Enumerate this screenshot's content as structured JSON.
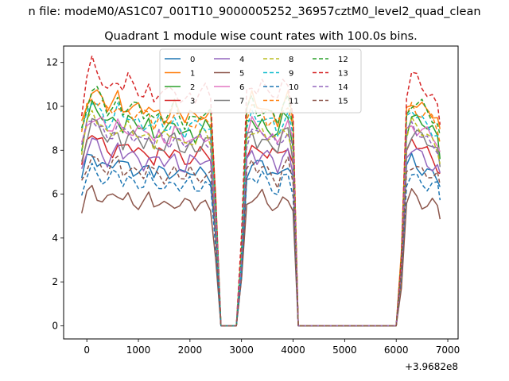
{
  "chart_data": {
    "type": "line",
    "suptitle": "n file: modeM0/AS1C07_001T10_9000005252_36957cztM0_level2_quad_clean",
    "title": "Quadrant 1 module wise count rates with 100.0s bins.",
    "xlabel": "",
    "ylabel": "",
    "x_offset_label": "+3.9682e8",
    "xlim": [
      -450,
      7200
    ],
    "ylim": [
      -0.6,
      12.75
    ],
    "x_ticks": [
      0,
      1000,
      2000,
      3000,
      4000,
      5000,
      6000,
      7000
    ],
    "x_tick_labels": [
      "0",
      "1000",
      "2000",
      "3000",
      "4000",
      "5000",
      "6000",
      "7000"
    ],
    "y_ticks": [
      0,
      2,
      4,
      6,
      8,
      10,
      12
    ],
    "y_tick_labels": [
      "0",
      "2",
      "4",
      "6",
      "8",
      "10",
      "12"
    ],
    "grid": false,
    "legend_location": "upper center",
    "legend_columns": 4,
    "note": "Per-module curves digitized approximately: baseline level per module plus shared fluctuation pattern; zero-rate gaps at ~2600-2950 and ~4150-6050.",
    "series": [
      {
        "name": "0",
        "color": "#1f77b4",
        "dash": "solid",
        "level": 7.3
      },
      {
        "name": "1",
        "color": "#ff7f0e",
        "dash": "solid",
        "level": 10.1
      },
      {
        "name": "2",
        "color": "#2ca02c",
        "dash": "solid",
        "level": 9.3
      },
      {
        "name": "3",
        "color": "#d62728",
        "dash": "solid",
        "level": 8.1
      },
      {
        "name": "4",
        "color": "#9467bd",
        "dash": "solid",
        "level": 7.8
      },
      {
        "name": "5",
        "color": "#8c564b",
        "dash": "solid",
        "level": 5.8
      },
      {
        "name": "6",
        "color": "#e377c2",
        "dash": "solid",
        "level": 9.0
      },
      {
        "name": "7",
        "color": "#7f7f7f",
        "dash": "solid",
        "level": 8.6
      },
      {
        "name": "8",
        "color": "#bcbd22",
        "dash": "dashed",
        "level": 8.9
      },
      {
        "name": "9",
        "color": "#17becf",
        "dash": "dashed",
        "level": 9.5
      },
      {
        "name": "10",
        "color": "#1f77b4",
        "dash": "dashed",
        "level": 6.7
      },
      {
        "name": "11",
        "color": "#ff7f0e",
        "dash": "dashed",
        "level": 9.8
      },
      {
        "name": "12",
        "color": "#2ca02c",
        "dash": "dashed",
        "level": 10.0
      },
      {
        "name": "13",
        "color": "#d62728",
        "dash": "dashed",
        "level": 11.0
      },
      {
        "name": "14",
        "color": "#9467bd",
        "dash": "dashed",
        "level": 8.8
      },
      {
        "name": "15",
        "color": "#8c564b",
        "dash": "dashed",
        "level": 7.2
      }
    ],
    "shape": {
      "x": [
        -100,
        0,
        100,
        200,
        300,
        400,
        500,
        600,
        700,
        800,
        900,
        1000,
        1100,
        1200,
        1300,
        1400,
        1500,
        1600,
        1700,
        1800,
        1900,
        2000,
        2100,
        2200,
        2300,
        2400,
        2500,
        2600,
        2700,
        2800,
        2900,
        3000,
        3100,
        3200,
        3300,
        3400,
        3500,
        3600,
        3700,
        3800,
        3900,
        4000,
        4100,
        4200,
        4300,
        4400,
        4500,
        4600,
        4700,
        4800,
        4900,
        5000,
        5100,
        5200,
        5300,
        5400,
        5500,
        5600,
        5700,
        5800,
        5900,
        6000,
        6100,
        6200,
        6300,
        6400,
        6500,
        6600,
        6700,
        6800,
        6850
      ],
      "factor": [
        0.9,
        1.02,
        1.08,
        1.05,
        1.02,
        0.98,
        1.0,
        1.03,
        0.98,
        1.01,
        0.99,
        0.98,
        0.96,
        0.99,
        0.94,
        0.97,
        0.95,
        0.96,
        0.99,
        0.95,
        0.93,
        0.96,
        0.94,
        0.96,
        0.97,
        0.95,
        0.55,
        0.0,
        0.0,
        0.0,
        0.0,
        0.35,
        0.97,
        1.02,
        0.98,
        1.0,
        0.97,
        0.96,
        0.93,
        1.0,
        1.02,
        0.9,
        0.0,
        0.0,
        0.0,
        0.0,
        0.0,
        0.0,
        0.0,
        0.0,
        0.0,
        0.0,
        0.0,
        0.0,
        0.0,
        0.0,
        0.0,
        0.0,
        0.0,
        0.0,
        0.0,
        0.0,
        0.3,
        0.97,
        1.03,
        1.01,
        0.99,
        0.97,
        0.95,
        0.92,
        0.86
      ]
    }
  }
}
